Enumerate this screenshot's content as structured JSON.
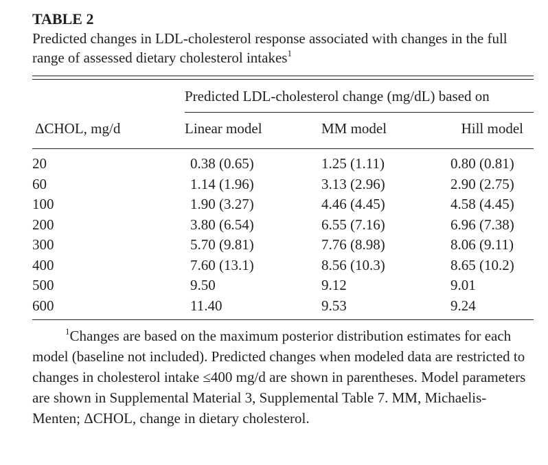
{
  "table": {
    "label": "TABLE 2",
    "caption": "Predicted changes in LDL-cholesterol response associated with changes in the full range of assessed dietary cholesterol intakes",
    "caption_footnote_marker": "1",
    "spanner_header": "Predicted LDL-cholesterol change (mg/dL) based on",
    "column_headers": [
      "ΔCHOL, mg/d",
      "Linear model",
      "MM model",
      "Hill model"
    ],
    "rows": [
      [
        "20",
        "0.38 (0.65)",
        "1.25 (1.11)",
        "0.80 (0.81)"
      ],
      [
        "60",
        "1.14 (1.96)",
        "3.13 (2.96)",
        "2.90 (2.75)"
      ],
      [
        "100",
        "1.90 (3.27)",
        "4.46 (4.45)",
        "4.58 (4.45)"
      ],
      [
        "200",
        "3.80 (6.54)",
        "6.55 (7.16)",
        "6.96 (7.38)"
      ],
      [
        "300",
        "5.70 (9.81)",
        "7.76 (8.98)",
        "8.06 (9.11)"
      ],
      [
        "400",
        "7.60 (13.1)",
        "8.56 (10.3)",
        "8.65 (10.2)"
      ],
      [
        "500",
        "9.50",
        "9.12",
        "9.01"
      ],
      [
        "600",
        "11.40",
        "9.53",
        "9.24"
      ]
    ],
    "footnote_marker": "1",
    "footnote": "Changes are based on the maximum posterior distribution estimates for each model (baseline not included). Predicted changes when modeled data are restricted to changes in cholesterol intake ≤400 mg/d are shown in parentheses. Model parameters are shown in Supplemental Material 3, Supplemental Table 7. MM, Michaelis-Menten; ΔCHOL, change in dietary cholesterol."
  }
}
